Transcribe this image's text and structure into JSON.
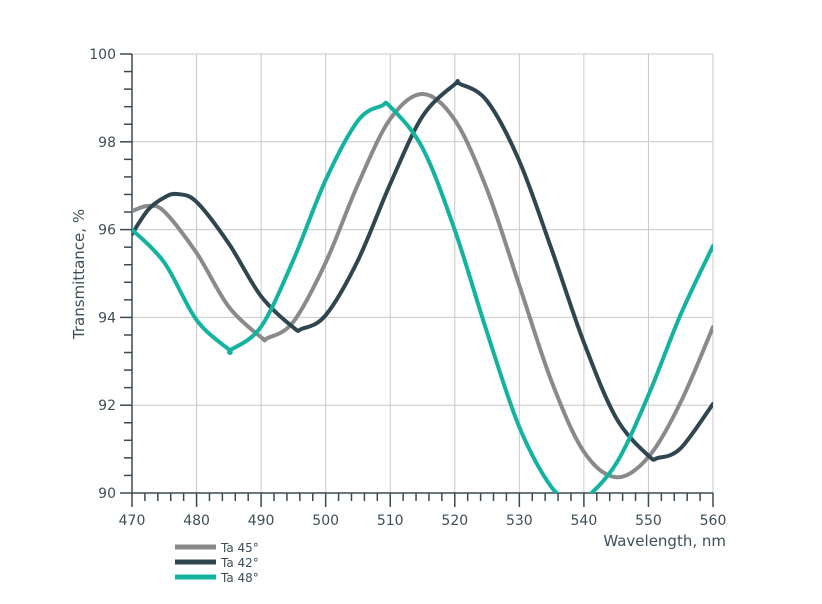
{
  "chart_data": {
    "type": "line",
    "title": "",
    "xlabel": "Wavelength, nm",
    "ylabel": "Transmittance, %",
    "xlim": [
      470,
      560
    ],
    "ylim": [
      90,
      100
    ],
    "xticks": [
      470,
      480,
      490,
      500,
      510,
      520,
      530,
      540,
      550,
      560
    ],
    "yticks": [
      90,
      92,
      94,
      96,
      98,
      100
    ],
    "grid": true,
    "legend_position": "bottom-left",
    "series": [
      {
        "name": "Ta 45°",
        "color": "#8a8a8a",
        "x": [
          470,
          472.5,
          475,
          480,
          485,
          490,
          491,
          495,
          500,
          505,
          510,
          515,
          520,
          525,
          530,
          535,
          540,
          545,
          550,
          555,
          560
        ],
        "y": [
          96.42,
          96.54,
          96.41,
          95.47,
          94.24,
          93.55,
          93.53,
          93.9,
          95.25,
          97.03,
          98.52,
          99.09,
          98.5,
          96.91,
          94.73,
          92.54,
          90.94,
          90.36,
          90.82,
          92.07,
          93.78
        ]
      },
      {
        "name": "Ta 42°",
        "color": "#2f4650",
        "x": [
          470,
          472.5,
          475,
          477,
          480,
          485,
          490,
          495,
          496.3,
          500,
          505,
          510,
          515,
          520,
          520.8,
          525,
          530,
          535,
          540,
          545,
          550,
          551.5,
          555,
          560
        ],
        "y": [
          95.9,
          96.45,
          96.73,
          96.81,
          96.63,
          95.68,
          94.48,
          93.77,
          93.74,
          94.05,
          95.3,
          97.04,
          98.58,
          99.31,
          99.32,
          98.93,
          97.56,
          95.55,
          93.43,
          91.71,
          90.85,
          90.8,
          91.02,
          92.03
        ]
      },
      {
        "name": "Ta 48°",
        "color": "#13b3a0",
        "x": [
          470,
          475,
          480,
          485,
          485.3,
          490,
          495,
          500,
          505,
          508.7,
          510,
          515,
          520,
          525,
          530,
          535,
          538.5,
          540,
          545,
          550,
          555,
          560
        ],
        "y": [
          96.0,
          95.25,
          93.94,
          93.27,
          93.26,
          93.79,
          95.31,
          97.13,
          98.48,
          98.82,
          98.8,
          97.86,
          95.99,
          93.66,
          91.5,
          90.13,
          89.82,
          89.84,
          90.67,
          92.23,
          94.07,
          95.63
        ]
      }
    ]
  }
}
